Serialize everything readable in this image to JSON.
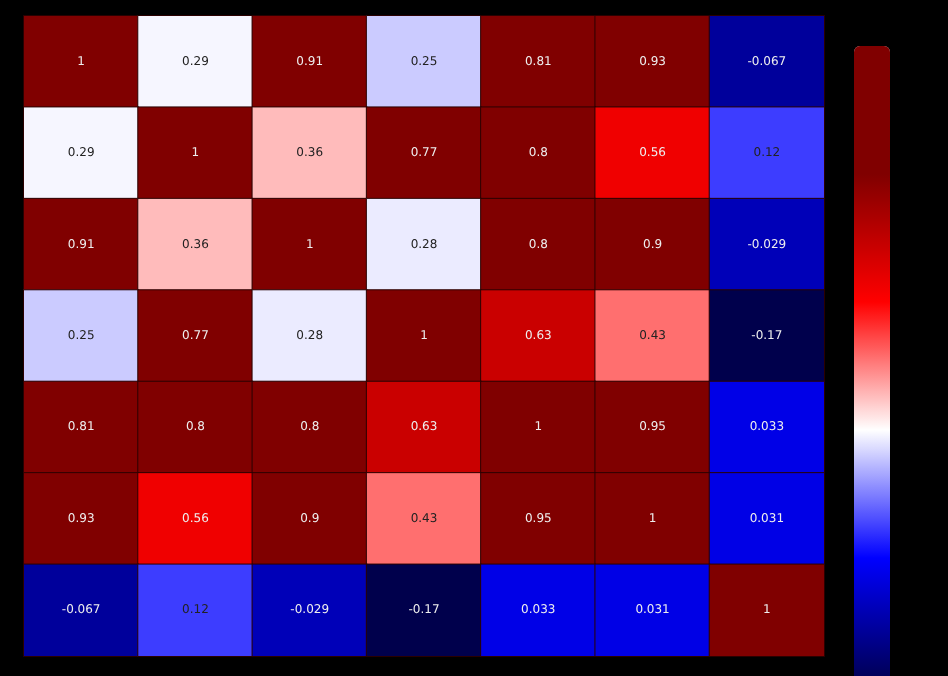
{
  "chart_data": {
    "type": "heatmap",
    "categories": [
      null,
      null,
      null,
      null,
      null,
      null,
      null
    ],
    "y_categories": [
      null,
      null,
      null,
      null,
      null,
      null,
      null
    ],
    "cells": [
      [
        1,
        0.29,
        0.91,
        0.25,
        0.81,
        0.93,
        -0.067
      ],
      [
        0.29,
        1,
        0.36,
        0.77,
        0.8,
        0.56,
        0.12
      ],
      [
        0.91,
        0.36,
        1,
        0.28,
        0.8,
        0.9,
        -0.029
      ],
      [
        0.25,
        0.77,
        0.28,
        1,
        0.63,
        0.43,
        -0.17
      ],
      [
        0.81,
        0.8,
        0.8,
        0.63,
        1,
        0.95,
        0.033
      ],
      [
        0.93,
        0.56,
        0.9,
        0.43,
        0.95,
        1,
        0.031
      ],
      [
        -0.067,
        0.12,
        -0.029,
        -0.17,
        0.033,
        0.031,
        1
      ]
    ],
    "data_labels": true
  }
}
